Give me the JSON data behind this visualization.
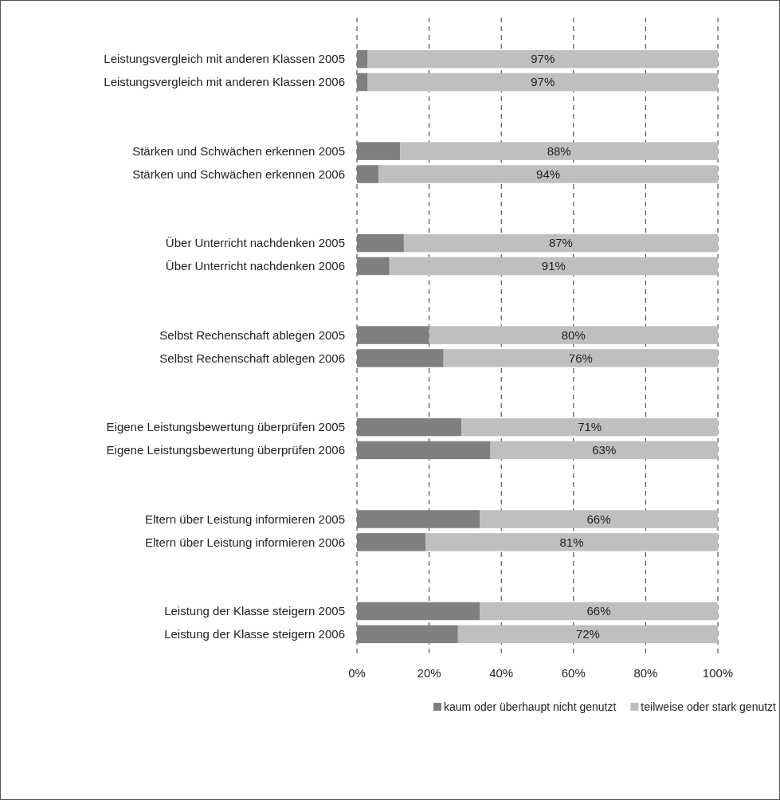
{
  "chart_data": {
    "type": "bar",
    "orientation": "horizontal",
    "stacked": true,
    "categories": [
      "Leistungsvergleich mit anderen Klassen 2005",
      "Leistungsvergleich mit anderen Klassen 2006",
      null,
      null,
      "Stärken und Schwächen erkennen 2005",
      "Stärken und Schwächen erkennen 2006",
      null,
      null,
      "Über Unterricht nachdenken 2005",
      "Über Unterricht nachdenken 2006",
      null,
      null,
      "Selbst Rechenschaft ablegen 2005",
      "Selbst Rechenschaft ablegen 2006",
      null,
      null,
      "Eigene Leistungsbewertung überprüfen 2005",
      "Eigene Leistungsbewertung überprüfen 2006",
      null,
      null,
      "Eltern über Leistung informieren 2005",
      "Eltern über Leistung informieren 2006",
      null,
      null,
      "Leistung der Klasse steigern 2005",
      "Leistung der Klasse steigern 2006"
    ],
    "series": [
      {
        "name": "kaum oder überhaupt nicht genutzt",
        "color": "#7f7f7f",
        "values": [
          3,
          3,
          null,
          null,
          12,
          6,
          null,
          null,
          13,
          9,
          null,
          null,
          20,
          24,
          null,
          null,
          29,
          37,
          null,
          null,
          34,
          19,
          null,
          null,
          34,
          28
        ]
      },
      {
        "name": "teilweise oder stark genutzt",
        "color": "#bfbfbf",
        "values": [
          97,
          97,
          null,
          null,
          88,
          94,
          null,
          null,
          87,
          91,
          null,
          null,
          80,
          76,
          null,
          null,
          71,
          63,
          null,
          null,
          66,
          81,
          null,
          null,
          66,
          72
        ],
        "value_labels": [
          "97%",
          "97%",
          null,
          null,
          "88%",
          "94%",
          null,
          null,
          "87%",
          "91%",
          null,
          null,
          "80%",
          "76%",
          null,
          null,
          "71%",
          "63%",
          null,
          null,
          "66%",
          "81%",
          null,
          null,
          "66%",
          "72%"
        ]
      }
    ],
    "xlim": [
      0,
      100
    ],
    "xticks": [
      {
        "value": 0,
        "label": "0%"
      },
      {
        "value": 20,
        "label": "20%"
      },
      {
        "value": 40,
        "label": "40%"
      },
      {
        "value": 60,
        "label": "60%"
      },
      {
        "value": 80,
        "label": "80%"
      },
      {
        "value": 100,
        "label": "100%"
      }
    ],
    "grid": "x",
    "legend": "bottom"
  }
}
